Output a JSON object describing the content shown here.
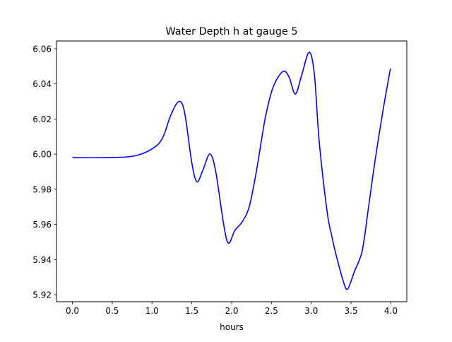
{
  "chart_data": {
    "type": "line",
    "title": "Water Depth h at gauge 5",
    "xlabel": "hours",
    "ylabel": "",
    "xlim": [
      -0.2,
      4.2
    ],
    "ylim": [
      5.916,
      6.0644
    ],
    "xticks": [
      0.0,
      0.5,
      1.0,
      1.5,
      2.0,
      2.5,
      3.0,
      3.5,
      4.0
    ],
    "xtick_labels": [
      "0.0",
      "0.5",
      "1.0",
      "1.5",
      "2.0",
      "2.5",
      "3.0",
      "3.5",
      "4.0"
    ],
    "yticks": [
      5.92,
      5.94,
      5.96,
      5.98,
      6.0,
      6.02,
      6.04,
      6.06
    ],
    "ytick_labels": [
      "5.92",
      "5.94",
      "5.96",
      "5.98",
      "6.00",
      "6.02",
      "6.04",
      "6.06"
    ],
    "grid": false,
    "series": [
      {
        "name": "h",
        "color": "#0000ff",
        "x": [
          0.0,
          0.42,
          0.77,
          1.0,
          1.13,
          1.24,
          1.34,
          1.41,
          1.5,
          1.564,
          1.64,
          1.727,
          1.8,
          1.9,
          1.96,
          2.04,
          2.13,
          2.22,
          2.31,
          2.42,
          2.52,
          2.643,
          2.72,
          2.8,
          2.88,
          2.974,
          3.04,
          3.1,
          3.2,
          3.255,
          3.31,
          3.4,
          3.456,
          3.54,
          3.64,
          3.72,
          3.8,
          3.9,
          3.994
        ],
        "y": [
          5.998,
          5.998,
          5.9989,
          6.003,
          6.009,
          6.0227,
          6.03,
          6.0235,
          5.995,
          5.9843,
          5.991,
          6.0001,
          5.99,
          5.96,
          5.9493,
          5.9565,
          5.9613,
          5.97,
          5.99,
          6.02,
          6.038,
          6.047,
          6.044,
          6.0342,
          6.045,
          6.058,
          6.045,
          6.007,
          5.967,
          5.954,
          5.943,
          5.928,
          5.9232,
          5.933,
          5.945,
          5.97,
          5.996,
          6.0245,
          6.0487
        ]
      }
    ]
  }
}
